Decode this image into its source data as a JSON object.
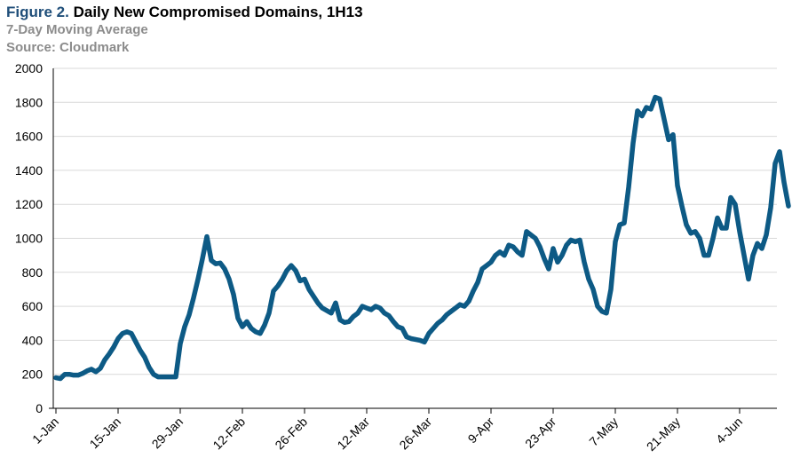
{
  "header": {
    "figure_label": "Figure 2.",
    "title": "Daily New Compromised Domains, 1H13",
    "subtitle": "7-Day Moving Average",
    "source": "Source: Cloudmark"
  },
  "colors": {
    "line": "#0d5a85",
    "grid": "#d9d9d9",
    "figure_label": "#1f4e79",
    "subtitle": "#8c8c8c"
  },
  "chart_data": {
    "type": "line",
    "title": "Daily New Compromised Domains, 1H13",
    "subtitle": "7-Day Moving Average",
    "xlabel": "",
    "ylabel": "",
    "ylim": [
      0,
      2000
    ],
    "yticks": [
      0,
      200,
      400,
      600,
      800,
      1000,
      1200,
      1400,
      1600,
      1800,
      2000
    ],
    "xticks": [
      "1-Jan",
      "15-Jan",
      "29-Jan",
      "12-Feb",
      "26-Feb",
      "12-Mar",
      "26-Mar",
      "9-Apr",
      "23-Apr",
      "7-May",
      "21-May",
      "4-Jun"
    ],
    "xtick_day_index": [
      0,
      14,
      28,
      42,
      56,
      70,
      84,
      98,
      112,
      126,
      140,
      154
    ],
    "grid": true,
    "legend": "none",
    "series": [
      {
        "values": [
          180,
          175,
          200,
          200,
          195,
          195,
          205,
          220,
          230,
          215,
          235,
          285,
          320,
          360,
          410,
          440,
          450,
          440,
          390,
          340,
          300,
          240,
          200,
          185,
          185,
          185,
          185,
          185,
          380,
          480,
          550,
          650,
          760,
          880,
          1010,
          870,
          850,
          855,
          820,
          760,
          670,
          530,
          480,
          510,
          470,
          450,
          440,
          490,
          560,
          690,
          720,
          760,
          810,
          840,
          810,
          750,
          760,
          700,
          660,
          620,
          590,
          575,
          560,
          620,
          520,
          505,
          510,
          540,
          560,
          600,
          590,
          580,
          600,
          590,
          560,
          545,
          510,
          480,
          470,
          420,
          410,
          405,
          400,
          390,
          440,
          470,
          500,
          520,
          550,
          570,
          590,
          610,
          600,
          630,
          690,
          740,
          820,
          840,
          860,
          900,
          920,
          900,
          960,
          950,
          920,
          900,
          1040,
          1020,
          1000,
          950,
          880,
          820,
          940,
          860,
          900,
          960,
          990,
          980,
          990,
          860,
          760,
          700,
          600,
          570,
          560,
          700,
          980,
          1080,
          1090,
          1300,
          1560,
          1750,
          1720,
          1770,
          1760,
          1830,
          1820,
          1700,
          1580,
          1610,
          1310,
          1190,
          1080,
          1030,
          1040,
          1000,
          900,
          900,
          1000,
          1120,
          1060,
          1060,
          1240,
          1200,
          1040,
          900,
          760,
          900,
          970,
          940,
          1020,
          1180,
          1440,
          1510,
          1330,
          1190
        ]
      }
    ]
  }
}
